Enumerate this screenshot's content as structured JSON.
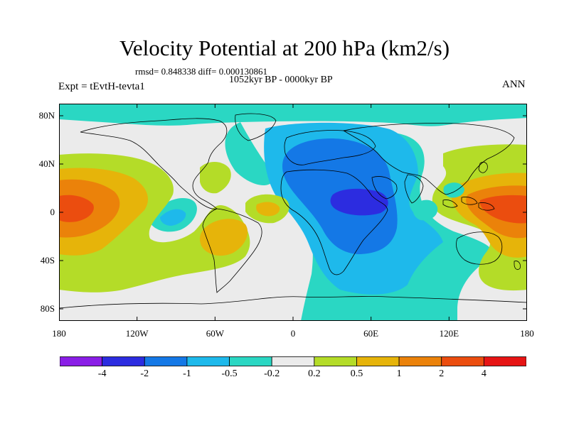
{
  "title": "Velocity Potential at 200 hPa (km2/s)",
  "stats_line": "rmsd= 0.848338 diff= 0.000130861",
  "period_line": "1052kyr BP - 0000kyr BP",
  "left_label": "Expt = tEvtH-tevta1",
  "right_label": "ANN",
  "map": {
    "projection": "cylindrical equidistant",
    "lat_labels": [
      {
        "text": "80N",
        "lat": 80
      },
      {
        "text": "40N",
        "lat": 40
      },
      {
        "text": "0",
        "lat": 0
      },
      {
        "text": "40S",
        "lat": -40
      },
      {
        "text": "80S",
        "lat": -80
      }
    ],
    "lon_labels": [
      {
        "text": "180",
        "lon": -180
      },
      {
        "text": "120W",
        "lon": -120
      },
      {
        "text": "60W",
        "lon": -60
      },
      {
        "text": "0",
        "lon": 0
      },
      {
        "text": "60E",
        "lon": 60
      },
      {
        "text": "120E",
        "lon": 120
      },
      {
        "text": "180",
        "lon": 180
      }
    ]
  },
  "colorbar": {
    "colors": [
      "#8a1ee6",
      "#2c2ce0",
      "#1478e6",
      "#1eb9eb",
      "#2ad7c3",
      "#ebebeb",
      "#b4dc28",
      "#e6b40a",
      "#eb820a",
      "#eb4d0f",
      "#e61414"
    ],
    "labels": [
      "-4",
      "-2",
      "-1",
      "-0.5",
      "-0.2",
      "0.2",
      "0.5",
      "1",
      "2",
      "4"
    ]
  }
}
